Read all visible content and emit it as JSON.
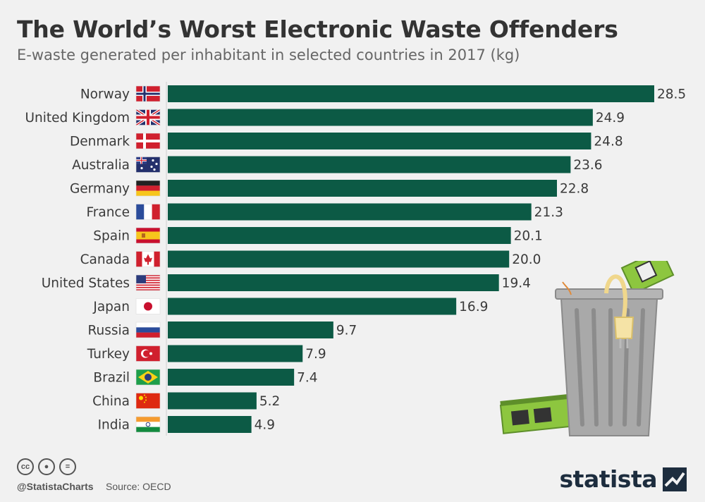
{
  "title": "The World’s Worst Electronic Waste Offenders",
  "subtitle": "E-waste generated per inhabitant in selected countries in 2017 (kg)",
  "footer": {
    "handle": "@StatistaCharts",
    "source": "Source: OECD",
    "brand": "statista"
  },
  "colors": {
    "bar": "#0c5a45",
    "background": "#f1f1f1"
  },
  "chart_data": {
    "type": "bar",
    "orientation": "horizontal",
    "title": "The World’s Worst Electronic Waste Offenders",
    "subtitle": "E-waste generated per inhabitant in selected countries in 2017 (kg)",
    "categories": [
      "Norway",
      "United Kingdom",
      "Denmark",
      "Australia",
      "Germany",
      "France",
      "Spain",
      "Canada",
      "United States",
      "Japan",
      "Russia",
      "Turkey",
      "Brazil",
      "China",
      "India"
    ],
    "values": [
      28.5,
      24.9,
      24.8,
      23.6,
      22.8,
      21.3,
      20.1,
      20.0,
      19.4,
      16.9,
      9.7,
      7.9,
      7.4,
      5.2,
      4.9
    ],
    "value_labels": [
      "28.5",
      "24.9",
      "24.8",
      "23.6",
      "22.8",
      "21.3",
      "20.1",
      "20.0",
      "19.4",
      "16.9",
      "9.7",
      "7.9",
      "7.4",
      "5.2",
      "4.9"
    ],
    "flags": [
      "norway-flag",
      "uk-flag",
      "denmark-flag",
      "australia-flag",
      "germany-flag",
      "france-flag",
      "spain-flag",
      "canada-flag",
      "usa-flag",
      "japan-flag",
      "russia-flag",
      "turkey-flag",
      "brazil-flag",
      "china-flag",
      "india-flag"
    ],
    "xlim": [
      0,
      28.5
    ],
    "grid": false,
    "legend": "none"
  }
}
